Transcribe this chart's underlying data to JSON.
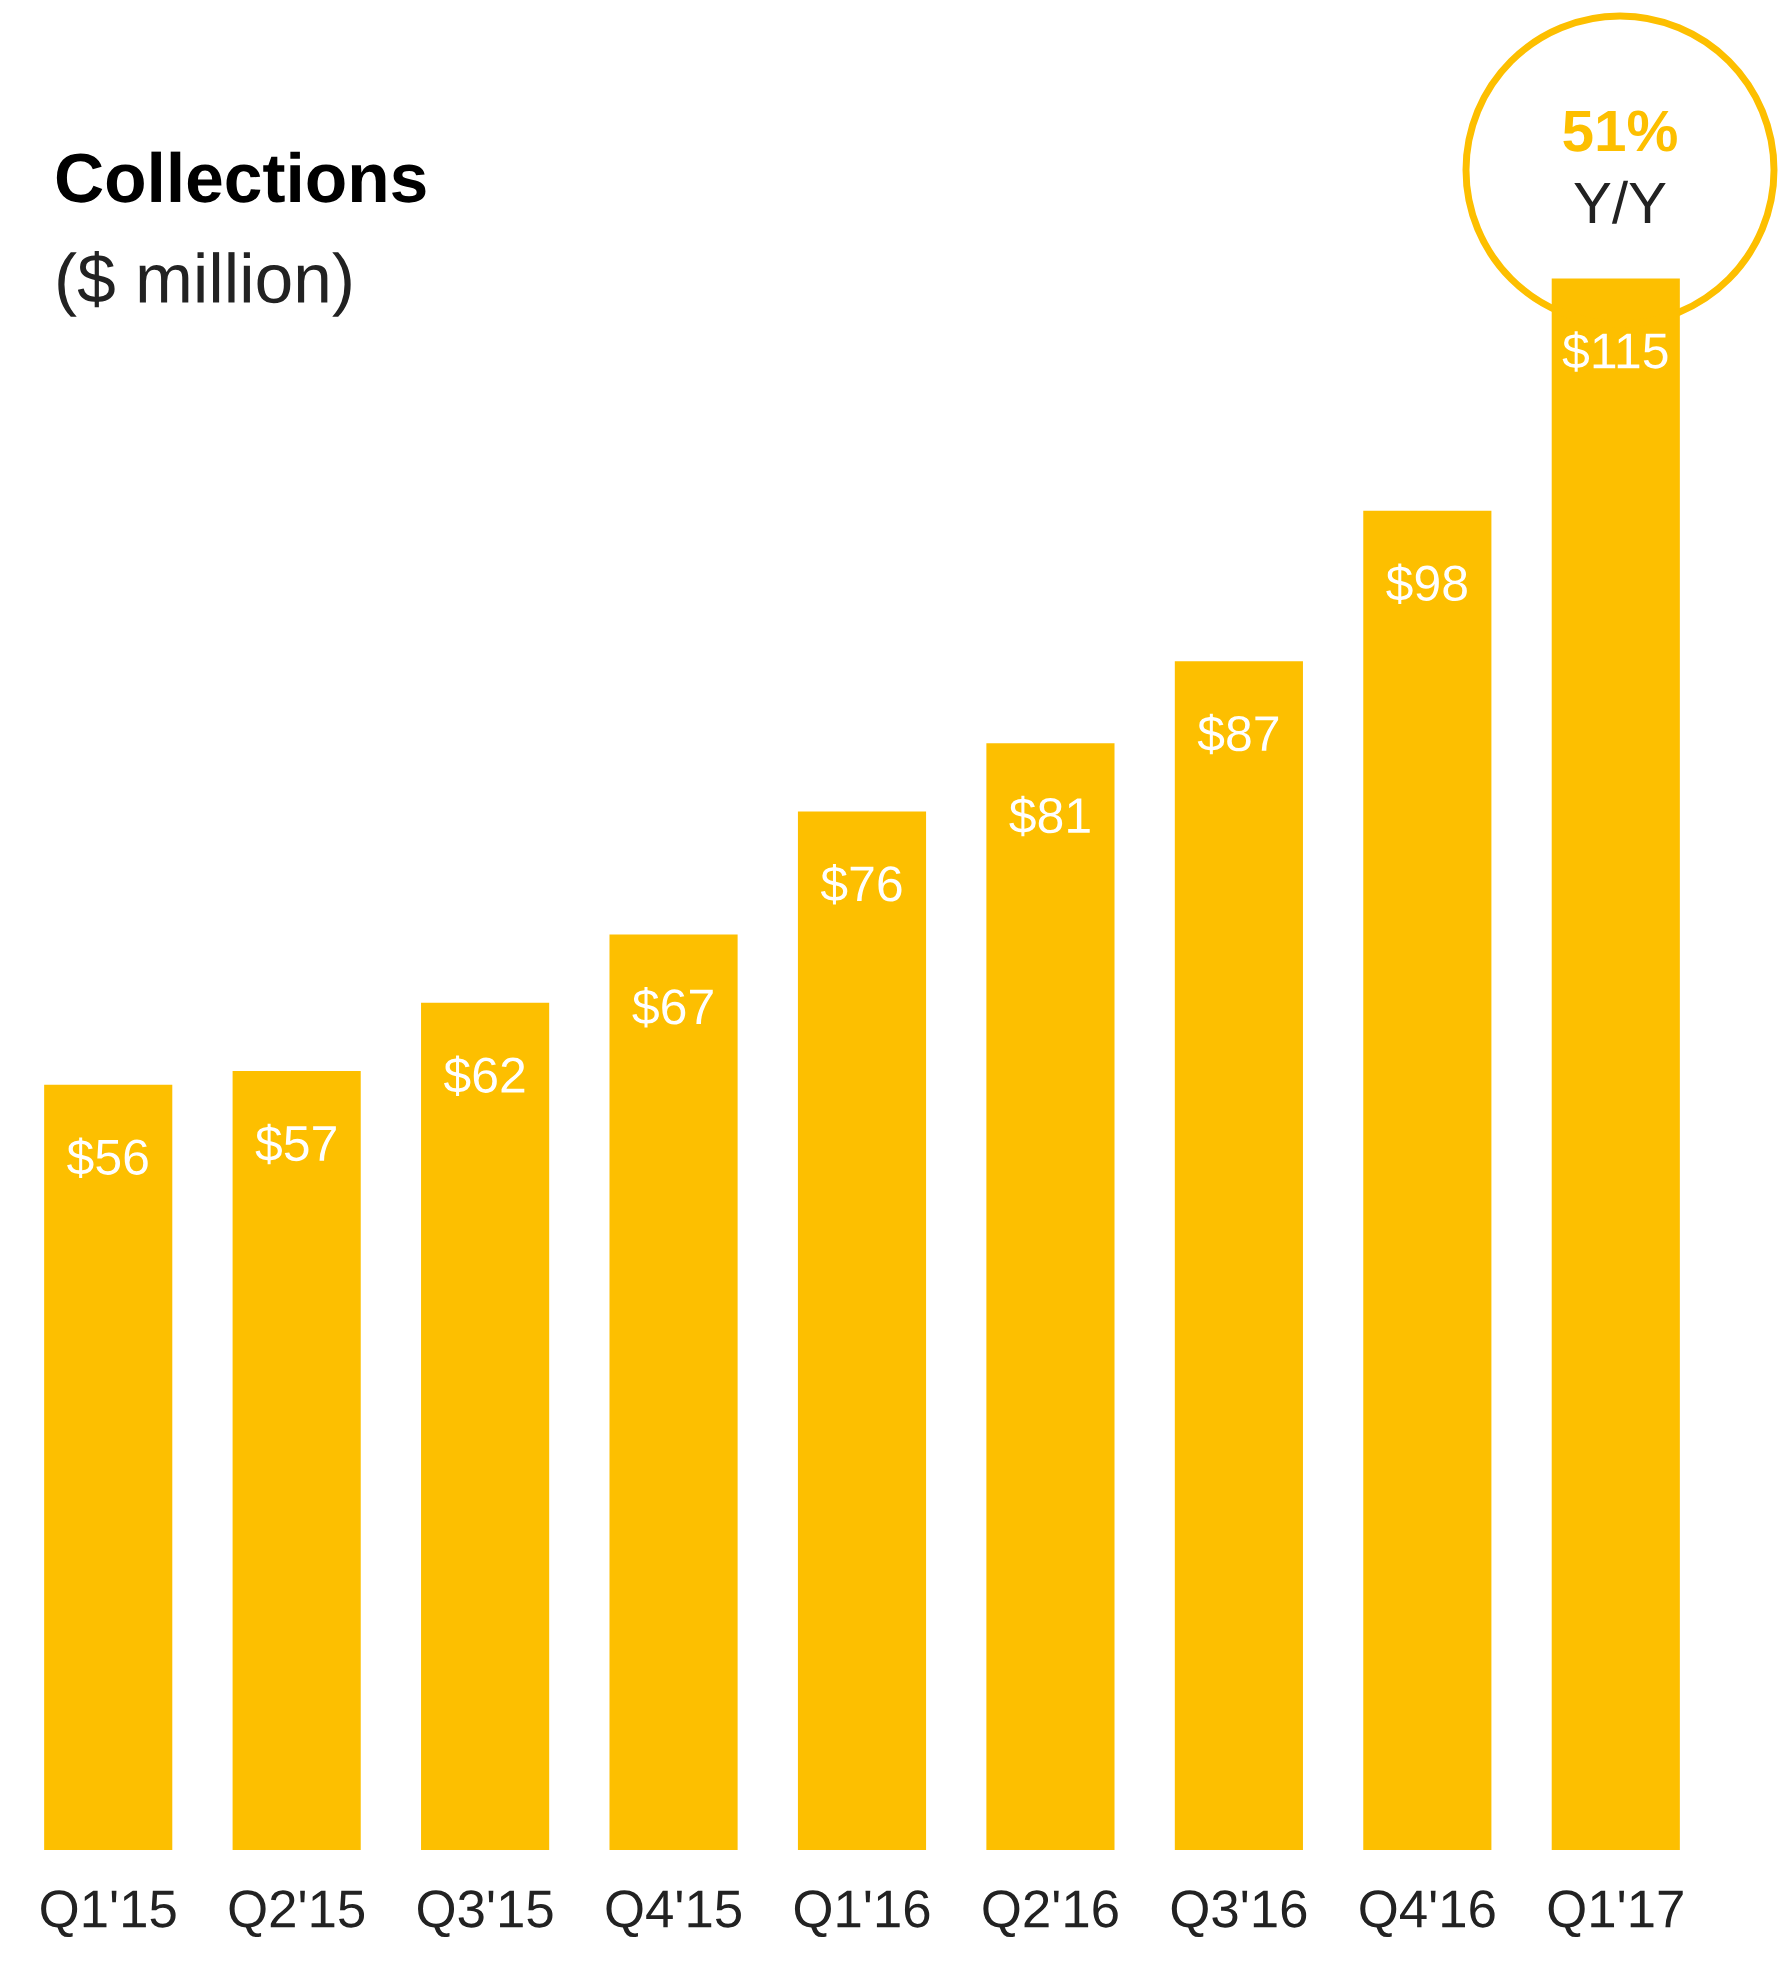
{
  "chart_data": {
    "type": "bar",
    "title": "Collections",
    "subtitle": "($ million)",
    "categories": [
      "Q1'15",
      "Q2'15",
      "Q3'15",
      "Q4'15",
      "Q1'16",
      "Q2'16",
      "Q3'16",
      "Q4'16",
      "Q1'17"
    ],
    "values": [
      56,
      57,
      62,
      67,
      76,
      81,
      87,
      98,
      115
    ],
    "value_labels": [
      "$56",
      "$57",
      "$62",
      "$67",
      "$76",
      "$81",
      "$87",
      "$98",
      "$115"
    ],
    "color": "#fdbf00",
    "tick_labels": "x",
    "grid": false,
    "legend": false,
    "annotations": [
      "51%",
      "Y/Y"
    ]
  }
}
